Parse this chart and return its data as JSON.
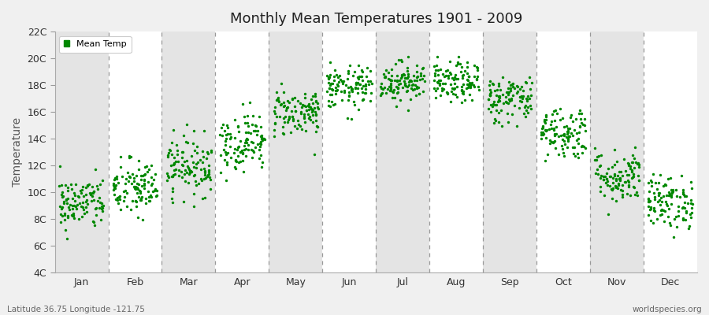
{
  "title": "Monthly Mean Temperatures 1901 - 2009",
  "ylabel": "Temperature",
  "xlabel_labels": [
    "Jan",
    "Feb",
    "Mar",
    "Apr",
    "May",
    "Jun",
    "Jul",
    "Aug",
    "Sep",
    "Oct",
    "Nov",
    "Dec"
  ],
  "ytick_labels": [
    "4C",
    "6C",
    "8C",
    "10C",
    "12C",
    "14C",
    "16C",
    "18C",
    "20C",
    "22C"
  ],
  "ytick_values": [
    4,
    6,
    8,
    10,
    12,
    14,
    16,
    18,
    20,
    22
  ],
  "ylim": [
    4,
    22
  ],
  "dot_color": "#008800",
  "dot_size": 6,
  "background_color": "#F0F0F0",
  "stripe_light": "#FFFFFF",
  "stripe_dark": "#E4E4E4",
  "legend_label": "Mean Temp",
  "subtitle": "Latitude 36.75 Longitude -121.75",
  "watermark": "worldspecies.org",
  "monthly_means": [
    9.2,
    10.3,
    12.0,
    13.8,
    16.0,
    17.8,
    18.3,
    18.2,
    17.0,
    14.5,
    11.2,
    9.3
  ],
  "monthly_stds": [
    1.0,
    1.1,
    1.1,
    1.1,
    0.9,
    0.8,
    0.75,
    0.75,
    0.9,
    1.0,
    1.0,
    1.0
  ],
  "n_years": 109,
  "seed": 42,
  "figwidth": 9.0,
  "figheight": 4.0,
  "dpi": 100
}
